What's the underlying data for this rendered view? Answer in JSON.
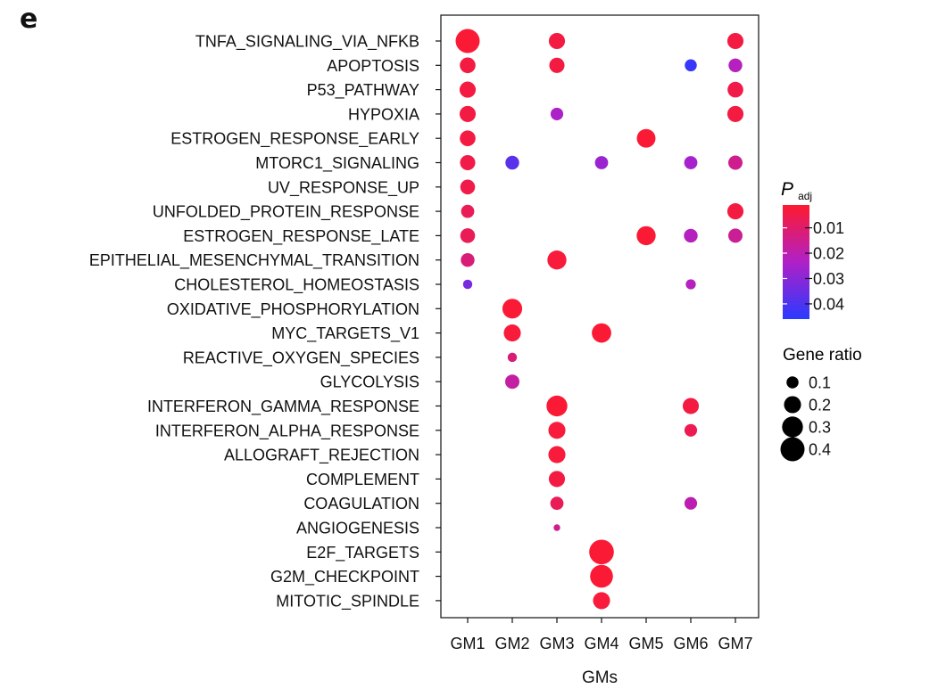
{
  "panel_letter": "e",
  "chart_data": {
    "type": "scatter",
    "subtype": "dot-plot",
    "title": "",
    "xlabel": "GMs",
    "ylabel": "",
    "categories_x": [
      "GM1",
      "GM2",
      "GM3",
      "GM4",
      "GM5",
      "GM6",
      "GM7"
    ],
    "categories_y": [
      "TNFA_SIGNALING_VIA_NFKB",
      "APOPTOSIS",
      "P53_PATHWAY",
      "HYPOXIA",
      "ESTROGEN_RESPONSE_EARLY",
      "MTORC1_SIGNALING",
      "UV_RESPONSE_UP",
      "UNFOLDED_PROTEIN_RESPONSE",
      "ESTROGEN_RESPONSE_LATE",
      "EPITHELIAL_MESENCHYMAL_TRANSITION",
      "CHOLESTEROL_HOMEOSTASIS",
      "OXIDATIVE_PHOSPHORYLATION",
      "MYC_TARGETS_V1",
      "REACTIVE_OXYGEN_SPECIES",
      "GLYCOLYSIS",
      "INTERFERON_GAMMA_RESPONSE",
      "INTERFERON_ALPHA_RESPONSE",
      "ALLOGRAFT_REJECTION",
      "COMPLEMENT",
      "COAGULATION",
      "ANGIOGENESIS",
      "E2F_TARGETS",
      "G2M_CHECKPOINT",
      "MITOTIC_SPINDLE"
    ],
    "points": [
      {
        "pathway": "TNFA_SIGNALING_VIA_NFKB",
        "gm": "GM1",
        "gene_ratio": 0.4,
        "p_adj": 0.002
      },
      {
        "pathway": "TNFA_SIGNALING_VIA_NFKB",
        "gm": "GM3",
        "gene_ratio": 0.18,
        "p_adj": 0.004
      },
      {
        "pathway": "TNFA_SIGNALING_VIA_NFKB",
        "gm": "GM7",
        "gene_ratio": 0.18,
        "p_adj": 0.004
      },
      {
        "pathway": "APOPTOSIS",
        "gm": "GM1",
        "gene_ratio": 0.17,
        "p_adj": 0.004
      },
      {
        "pathway": "APOPTOSIS",
        "gm": "GM3",
        "gene_ratio": 0.16,
        "p_adj": 0.004
      },
      {
        "pathway": "APOPTOSIS",
        "gm": "GM6",
        "gene_ratio": 0.1,
        "p_adj": 0.044
      },
      {
        "pathway": "APOPTOSIS",
        "gm": "GM7",
        "gene_ratio": 0.13,
        "p_adj": 0.022
      },
      {
        "pathway": "P53_PATHWAY",
        "gm": "GM1",
        "gene_ratio": 0.18,
        "p_adj": 0.004
      },
      {
        "pathway": "P53_PATHWAY",
        "gm": "GM7",
        "gene_ratio": 0.17,
        "p_adj": 0.005
      },
      {
        "pathway": "HYPOXIA",
        "gm": "GM1",
        "gene_ratio": 0.18,
        "p_adj": 0.004
      },
      {
        "pathway": "HYPOXIA",
        "gm": "GM3",
        "gene_ratio": 0.11,
        "p_adj": 0.024
      },
      {
        "pathway": "HYPOXIA",
        "gm": "GM7",
        "gene_ratio": 0.18,
        "p_adj": 0.004
      },
      {
        "pathway": "ESTROGEN_RESPONSE_EARLY",
        "gm": "GM1",
        "gene_ratio": 0.17,
        "p_adj": 0.004
      },
      {
        "pathway": "ESTROGEN_RESPONSE_EARLY",
        "gm": "GM5",
        "gene_ratio": 0.24,
        "p_adj": 0.002
      },
      {
        "pathway": "MTORC1_SIGNALING",
        "gm": "GM1",
        "gene_ratio": 0.16,
        "p_adj": 0.005
      },
      {
        "pathway": "MTORC1_SIGNALING",
        "gm": "GM2",
        "gene_ratio": 0.13,
        "p_adj": 0.038
      },
      {
        "pathway": "MTORC1_SIGNALING",
        "gm": "GM4",
        "gene_ratio": 0.12,
        "p_adj": 0.027
      },
      {
        "pathway": "MTORC1_SIGNALING",
        "gm": "GM6",
        "gene_ratio": 0.12,
        "p_adj": 0.025
      },
      {
        "pathway": "MTORC1_SIGNALING",
        "gm": "GM7",
        "gene_ratio": 0.14,
        "p_adj": 0.015
      },
      {
        "pathway": "UV_RESPONSE_UP",
        "gm": "GM1",
        "gene_ratio": 0.15,
        "p_adj": 0.005
      },
      {
        "pathway": "UNFOLDED_PROTEIN_RESPONSE",
        "gm": "GM1",
        "gene_ratio": 0.12,
        "p_adj": 0.007
      },
      {
        "pathway": "UNFOLDED_PROTEIN_RESPONSE",
        "gm": "GM7",
        "gene_ratio": 0.18,
        "p_adj": 0.004
      },
      {
        "pathway": "ESTROGEN_RESPONSE_LATE",
        "gm": "GM1",
        "gene_ratio": 0.15,
        "p_adj": 0.007
      },
      {
        "pathway": "ESTROGEN_RESPONSE_LATE",
        "gm": "GM5",
        "gene_ratio": 0.25,
        "p_adj": 0.002
      },
      {
        "pathway": "ESTROGEN_RESPONSE_LATE",
        "gm": "GM6",
        "gene_ratio": 0.13,
        "p_adj": 0.022
      },
      {
        "pathway": "ESTROGEN_RESPONSE_LATE",
        "gm": "GM7",
        "gene_ratio": 0.14,
        "p_adj": 0.016
      },
      {
        "pathway": "EPITHELIAL_MESENCHYMAL_TRANSITION",
        "gm": "GM1",
        "gene_ratio": 0.13,
        "p_adj": 0.012
      },
      {
        "pathway": "EPITHELIAL_MESENCHYMAL_TRANSITION",
        "gm": "GM3",
        "gene_ratio": 0.25,
        "p_adj": 0.003
      },
      {
        "pathway": "CHOLESTEROL_HOMEOSTASIS",
        "gm": "GM1",
        "gene_ratio": 0.06,
        "p_adj": 0.033
      },
      {
        "pathway": "CHOLESTEROL_HOMEOSTASIS",
        "gm": "GM6",
        "gene_ratio": 0.07,
        "p_adj": 0.022
      },
      {
        "pathway": "OXIDATIVE_PHOSPHORYLATION",
        "gm": "GM2",
        "gene_ratio": 0.27,
        "p_adj": 0.002
      },
      {
        "pathway": "MYC_TARGETS_V1",
        "gm": "GM2",
        "gene_ratio": 0.2,
        "p_adj": 0.003
      },
      {
        "pathway": "MYC_TARGETS_V1",
        "gm": "GM4",
        "gene_ratio": 0.26,
        "p_adj": 0.002
      },
      {
        "pathway": "REACTIVE_OXYGEN_SPECIES",
        "gm": "GM2",
        "gene_ratio": 0.06,
        "p_adj": 0.012
      },
      {
        "pathway": "GLYCOLYSIS",
        "gm": "GM2",
        "gene_ratio": 0.14,
        "p_adj": 0.018
      },
      {
        "pathway": "INTERFERON_GAMMA_RESPONSE",
        "gm": "GM3",
        "gene_ratio": 0.3,
        "p_adj": 0.002
      },
      {
        "pathway": "INTERFERON_GAMMA_RESPONSE",
        "gm": "GM6",
        "gene_ratio": 0.18,
        "p_adj": 0.004
      },
      {
        "pathway": "INTERFERON_ALPHA_RESPONSE",
        "gm": "GM3",
        "gene_ratio": 0.2,
        "p_adj": 0.003
      },
      {
        "pathway": "INTERFERON_ALPHA_RESPONSE",
        "gm": "GM6",
        "gene_ratio": 0.11,
        "p_adj": 0.006
      },
      {
        "pathway": "ALLOGRAFT_REJECTION",
        "gm": "GM3",
        "gene_ratio": 0.2,
        "p_adj": 0.003
      },
      {
        "pathway": "COMPLEMENT",
        "gm": "GM3",
        "gene_ratio": 0.18,
        "p_adj": 0.004
      },
      {
        "pathway": "COAGULATION",
        "gm": "GM3",
        "gene_ratio": 0.12,
        "p_adj": 0.007
      },
      {
        "pathway": "COAGULATION",
        "gm": "GM6",
        "gene_ratio": 0.11,
        "p_adj": 0.02
      },
      {
        "pathway": "ANGIOGENESIS",
        "gm": "GM3",
        "gene_ratio": 0.03,
        "p_adj": 0.015
      },
      {
        "pathway": "E2F_TARGETS",
        "gm": "GM4",
        "gene_ratio": 0.42,
        "p_adj": 0.002
      },
      {
        "pathway": "G2M_CHECKPOINT",
        "gm": "GM4",
        "gene_ratio": 0.36,
        "p_adj": 0.002
      },
      {
        "pathway": "MITOTIC_SPINDLE",
        "gm": "GM4",
        "gene_ratio": 0.2,
        "p_adj": 0.003
      }
    ],
    "color_legend": {
      "title_main": "P",
      "title_sub": "adj",
      "ticks": [
        "0.01",
        "0.02",
        "0.03",
        "0.04"
      ],
      "tick_values": [
        0.01,
        0.02,
        0.03,
        0.04
      ],
      "range": [
        0.001,
        0.046
      ],
      "color_low_p": "#ff1a2e",
      "color_mid_p": "#b020c8",
      "color_high_p": "#2a3aff"
    },
    "size_legend": {
      "title": "Gene ratio",
      "labels": [
        "0.1",
        "0.2",
        "0.3",
        "0.4"
      ],
      "values": [
        0.1,
        0.2,
        0.3,
        0.4
      ]
    },
    "grid": false,
    "legend_position": "right"
  }
}
